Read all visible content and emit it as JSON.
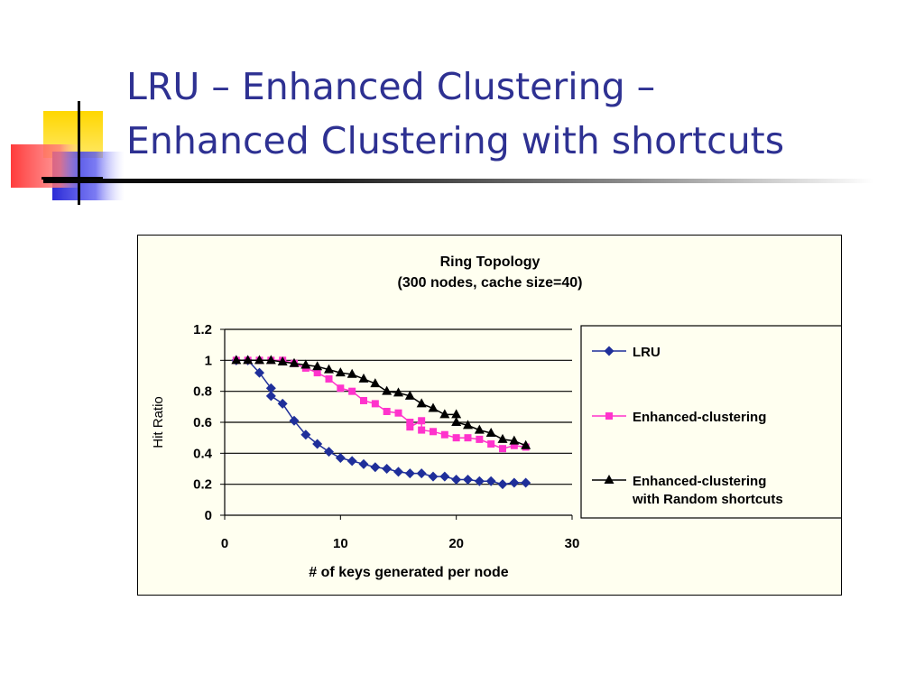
{
  "slide": {
    "title_line1": "LRU – Enhanced Clustering –",
    "title_line2": "Enhanced Clustering with shortcuts"
  },
  "colors": {
    "title": "#2e3192",
    "chart_bg": "#fffff0",
    "lru": "#1f2f9a",
    "enhanced_clustering": "#ff33cc",
    "enhanced_shortcuts": "#000000"
  },
  "chart_data": {
    "type": "line",
    "title": "Ring Topology",
    "subtitle": "(300 nodes, cache size=40)",
    "xlabel": "# of keys generated per node",
    "ylabel": "Hit Ratio",
    "xlim": [
      0,
      30
    ],
    "ylim": [
      0,
      1.2
    ],
    "xticks": [
      "0",
      "10",
      "20",
      "30"
    ],
    "yticks": [
      "0",
      "0.2",
      "0.4",
      "0.6",
      "0.8",
      "1",
      "1.2"
    ],
    "grid": "horizontal",
    "legend_position": "right",
    "series": [
      {
        "name": "LRU",
        "marker": "diamond",
        "x": [
          1,
          2,
          3,
          4,
          4,
          5,
          6,
          7,
          8,
          9,
          10,
          11,
          12,
          13,
          14,
          15,
          16,
          17,
          18,
          19,
          20,
          21,
          22,
          23,
          24,
          25,
          26
        ],
        "y": [
          1.0,
          1.0,
          0.92,
          0.82,
          0.77,
          0.72,
          0.61,
          0.52,
          0.46,
          0.41,
          0.37,
          0.35,
          0.33,
          0.31,
          0.3,
          0.28,
          0.27,
          0.27,
          0.25,
          0.25,
          0.23,
          0.23,
          0.22,
          0.22,
          0.2,
          0.21,
          0.21
        ]
      },
      {
        "name": "Enhanced-clustering",
        "marker": "square",
        "x": [
          1,
          2,
          3,
          4,
          5,
          6,
          7,
          8,
          9,
          10,
          11,
          12,
          13,
          14,
          15,
          16,
          16,
          17,
          17,
          18,
          19,
          20,
          21,
          22,
          23,
          24,
          25,
          26
        ],
        "y": [
          1.0,
          1.0,
          1.0,
          1.0,
          1.0,
          0.98,
          0.95,
          0.92,
          0.88,
          0.82,
          0.8,
          0.74,
          0.72,
          0.67,
          0.66,
          0.6,
          0.57,
          0.61,
          0.55,
          0.54,
          0.52,
          0.5,
          0.5,
          0.49,
          0.46,
          0.43,
          0.45,
          0.44
        ]
      },
      {
        "name": "Enhanced-clustering with Random shortcuts",
        "marker": "triangle",
        "x": [
          1,
          2,
          3,
          4,
          5,
          6,
          7,
          8,
          9,
          10,
          11,
          12,
          13,
          14,
          15,
          16,
          17,
          18,
          19,
          20,
          20,
          21,
          22,
          23,
          24,
          25,
          26
        ],
        "y": [
          1.0,
          1.0,
          1.0,
          1.0,
          0.99,
          0.98,
          0.97,
          0.96,
          0.94,
          0.92,
          0.91,
          0.88,
          0.85,
          0.8,
          0.79,
          0.77,
          0.72,
          0.69,
          0.65,
          0.65,
          0.6,
          0.58,
          0.55,
          0.53,
          0.49,
          0.48,
          0.45
        ]
      }
    ],
    "legend": {
      "entries": [
        {
          "lines": [
            "LRU"
          ]
        },
        {
          "lines": [
            "Enhanced-clustering"
          ]
        },
        {
          "lines": [
            "Enhanced-clustering",
            "with Random shortcuts"
          ]
        }
      ]
    }
  }
}
